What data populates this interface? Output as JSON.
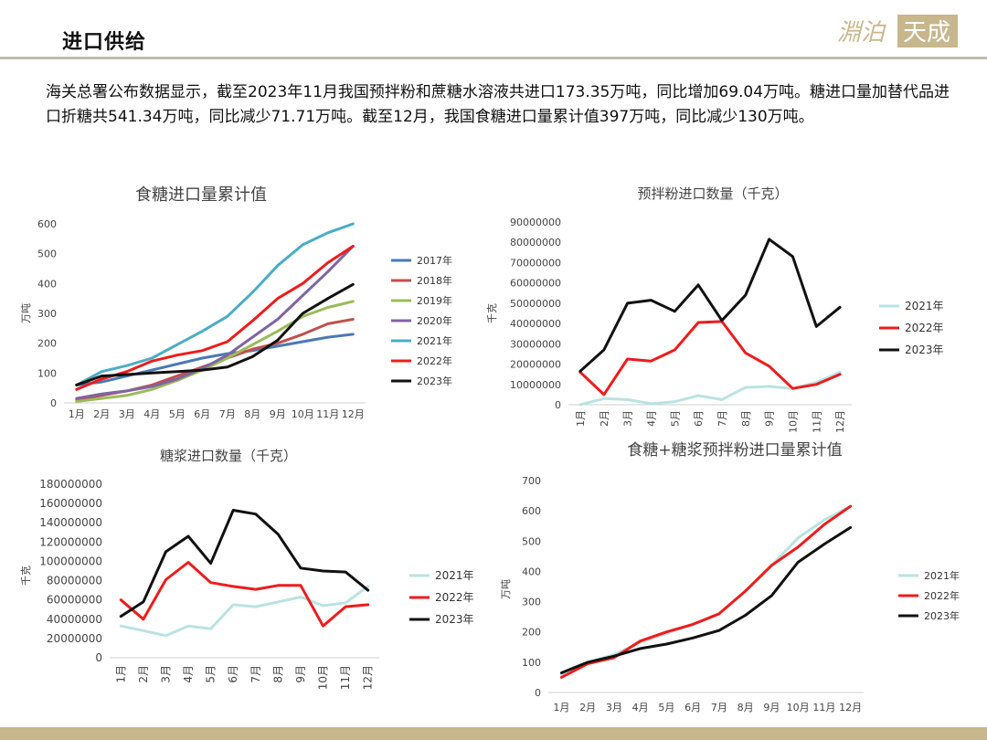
{
  "header": {
    "title": "进口供给",
    "logo_text": "淵泊 天成"
  },
  "paragraph": "海关总署公布数据显示，截至2023年11月我国预拌粉和蔗糖水溶液共进口173.35万吨，同比增加69.04万吨。糖进口量加替代品进口折糖共541.34万吨，同比减少71.71万吨。截至12月，我国食糖进口量累计值397万吨，同比减少130万吨。",
  "colors": {
    "footer": "#c8b78d",
    "rule": "#bfb9ae"
  },
  "chart_data": [
    {
      "type": "line",
      "title": "食糖进口量累计值",
      "ylabel": "万吨",
      "xlabel": "",
      "categories": [
        "1月",
        "2月",
        "3月",
        "4月",
        "5月",
        "6月",
        "7月",
        "8月",
        "9月",
        "10月",
        "11月",
        "12月"
      ],
      "ylim": [
        0,
        600
      ],
      "yticks": [
        0,
        100,
        200,
        300,
        400,
        500,
        600
      ],
      "legend_position": "right",
      "grid": false,
      "series": [
        {
          "name": "2017年",
          "color": "#4a7ab5",
          "values": [
            60,
            70,
            90,
            110,
            130,
            150,
            165,
            175,
            190,
            205,
            220,
            230
          ]
        },
        {
          "name": "2018年",
          "color": "#c0504d",
          "values": [
            10,
            25,
            40,
            60,
            90,
            120,
            150,
            180,
            200,
            230,
            265,
            280
          ]
        },
        {
          "name": "2019年",
          "color": "#9bbb59",
          "values": [
            5,
            15,
            25,
            45,
            75,
            110,
            150,
            195,
            240,
            290,
            320,
            340
          ]
        },
        {
          "name": "2020年",
          "color": "#8064a2",
          "values": [
            15,
            30,
            40,
            55,
            80,
            115,
            160,
            220,
            280,
            360,
            440,
            525
          ]
        },
        {
          "name": "2021年",
          "color": "#4bacc6",
          "values": [
            60,
            105,
            125,
            150,
            195,
            240,
            290,
            370,
            460,
            530,
            570,
            600
          ]
        },
        {
          "name": "2022年",
          "color": "#ee1c1c",
          "values": [
            45,
            80,
            105,
            140,
            160,
            175,
            205,
            275,
            350,
            400,
            470,
            525
          ]
        },
        {
          "name": "2023年",
          "color": "#111111",
          "values": [
            60,
            90,
            95,
            100,
            105,
            110,
            120,
            155,
            210,
            300,
            350,
            397
          ]
        }
      ]
    },
    {
      "type": "line",
      "title": "预拌粉进口数量（千克）",
      "ylabel": "千克",
      "xlabel": "",
      "categories": [
        "1月",
        "2月",
        "3月",
        "4月",
        "5月",
        "6月",
        "7月",
        "8月",
        "9月",
        "10月",
        "11月",
        "12月"
      ],
      "ylim": [
        0,
        90000000
      ],
      "yticks": [
        0,
        10000000,
        20000000,
        30000000,
        40000000,
        50000000,
        60000000,
        70000000,
        80000000,
        90000000
      ],
      "legend_position": "right",
      "grid": false,
      "series": [
        {
          "name": "2021年",
          "color": "#b9e3e3",
          "values": [
            0,
            3000000,
            2500000,
            500000,
            1500000,
            4500000,
            2500000,
            8500000,
            9000000,
            8000000,
            11000000,
            16000000
          ]
        },
        {
          "name": "2022年",
          "color": "#ee1c1c",
          "values": [
            16000000,
            5000000,
            22500000,
            21500000,
            27000000,
            40500000,
            41000000,
            25500000,
            19000000,
            8000000,
            10000000,
            15000000
          ]
        },
        {
          "name": "2023年",
          "color": "#111111",
          "values": [
            16500000,
            27000000,
            50000000,
            51500000,
            46000000,
            59000000,
            41500000,
            54000000,
            81500000,
            73000000,
            38500000,
            48000000
          ]
        }
      ]
    },
    {
      "type": "line",
      "title": "糖浆进口数量（千克）",
      "ylabel": "千克",
      "xlabel": "",
      "categories": [
        "1月",
        "2月",
        "3月",
        "4月",
        "5月",
        "6月",
        "7月",
        "8月",
        "9月",
        "10月",
        "11月",
        "12月"
      ],
      "ylim": [
        0,
        180000000
      ],
      "yticks": [
        0,
        20000000,
        40000000,
        60000000,
        80000000,
        100000000,
        120000000,
        140000000,
        160000000,
        180000000
      ],
      "legend_position": "right",
      "grid": false,
      "series": [
        {
          "name": "2021年",
          "color": "#b9e3e3",
          "values": [
            33000000,
            28000000,
            23000000,
            33000000,
            30000000,
            55000000,
            53000000,
            58000000,
            63000000,
            54000000,
            57000000,
            74000000
          ]
        },
        {
          "name": "2022年",
          "color": "#ee1c1c",
          "values": [
            60000000,
            40000000,
            81000000,
            99000000,
            78000000,
            74000000,
            71000000,
            75000000,
            75000000,
            33000000,
            53000000,
            55000000
          ]
        },
        {
          "name": "2023年",
          "color": "#111111",
          "values": [
            43000000,
            58000000,
            110000000,
            126000000,
            98000000,
            153000000,
            149000000,
            128000000,
            93000000,
            90000000,
            89000000,
            70000000
          ]
        }
      ]
    },
    {
      "type": "line",
      "title": "食糖+糖浆预拌粉进口量累计值",
      "ylabel": "万吨",
      "xlabel": "",
      "categories": [
        "1月",
        "2月",
        "3月",
        "4月",
        "5月",
        "6月",
        "7月",
        "8月",
        "9月",
        "10月",
        "11月",
        "12月"
      ],
      "ylim": [
        0,
        700
      ],
      "yticks": [
        0,
        100,
        200,
        300,
        400,
        500,
        600,
        700
      ],
      "legend_position": "right",
      "grid": false,
      "series": [
        {
          "name": "2021年",
          "color": "#b9e3e3",
          "values": [
            60,
            100,
            125,
            165,
            195,
            225,
            260,
            335,
            420,
            510,
            570,
            615
          ]
        },
        {
          "name": "2022年",
          "color": "#ee1c1c",
          "values": [
            50,
            95,
            115,
            170,
            200,
            225,
            260,
            335,
            420,
            480,
            555,
            615
          ]
        },
        {
          "name": "2023年",
          "color": "#111111",
          "values": [
            65,
            100,
            120,
            145,
            160,
            180,
            205,
            255,
            320,
            430,
            490,
            545
          ]
        }
      ]
    }
  ]
}
